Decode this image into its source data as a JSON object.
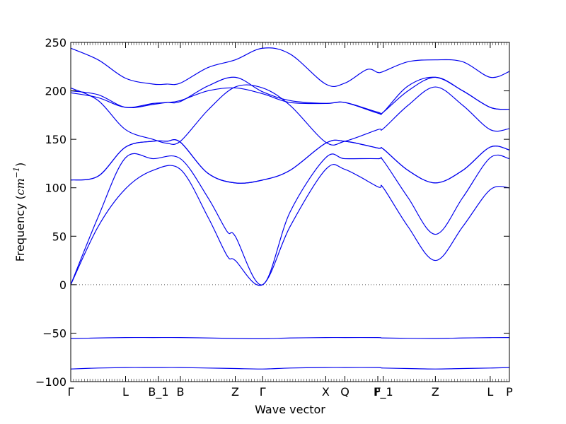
{
  "chart_data": {
    "type": "line",
    "title": "",
    "xlabel": "Wave vector",
    "ylabel_prefix": "Frequency (",
    "ylabel_unit_base": "cm",
    "ylabel_unit_exp": "−1",
    "ylabel_suffix": ")",
    "ylim": [
      -100,
      250
    ],
    "yticks": [
      -100,
      -50,
      0,
      50,
      100,
      150,
      200,
      250
    ],
    "ytick_labels": [
      "−100",
      "−50",
      "0",
      "50",
      "100",
      "150",
      "200",
      "250"
    ],
    "xlim": [
      0,
      16
    ],
    "xticks": [
      {
        "x": 0,
        "label": "Γ"
      },
      {
        "x": 2.0,
        "label": "L"
      },
      {
        "x": 3.2,
        "label": "B_1"
      },
      {
        "x": 4.0,
        "label": "B"
      },
      {
        "x": 6.0,
        "label": "Z"
      },
      {
        "x": 7.0,
        "label": "Γ"
      },
      {
        "x": 9.3,
        "label": "X"
      },
      {
        "x": 10.0,
        "label": "Q"
      },
      {
        "x": 11.2,
        "label": "F"
      },
      {
        "x": 11.4,
        "label": "P_1"
      },
      {
        "x": 13.3,
        "label": "Z"
      },
      {
        "x": 15.3,
        "label": "L"
      },
      {
        "x": 16.0,
        "label": "P"
      }
    ],
    "zero_line": true,
    "line_color": "#0000ee",
    "series": [
      {
        "x": [
          0,
          1,
          2,
          3,
          4,
          5,
          6,
          7,
          8,
          9.3,
          10,
          11.2,
          11.4,
          12.3,
          13.3,
          14.3,
          15.3,
          16
        ],
        "y": [
          -87,
          -86,
          -85.5,
          -85.5,
          -85.5,
          -86,
          -86.5,
          -87,
          -86,
          -85.5,
          -85.5,
          -85.5,
          -86,
          -86.5,
          -87,
          -86.5,
          -86,
          -85.5
        ]
      },
      {
        "x": [
          0,
          1,
          2,
          3,
          4,
          5,
          6,
          7,
          8,
          9.3,
          10,
          11.2,
          11.4,
          12.3,
          13.3,
          14.3,
          15.3,
          16
        ],
        "y": [
          -55.5,
          -55,
          -54.5,
          -54.5,
          -54.5,
          -55,
          -55.5,
          -55.8,
          -55,
          -54.5,
          -54.5,
          -54.5,
          -55,
          -55.3,
          -55.5,
          -55,
          -54.6,
          -54.5
        ]
      },
      {
        "x": [
          0,
          1,
          2,
          3,
          4,
          5,
          5.7,
          6,
          7,
          8,
          9.3,
          10,
          11.2,
          11.4,
          12.3,
          13.3,
          14.3,
          15.3,
          16
        ],
        "y": [
          0,
          60,
          99,
          118,
          119,
          70,
          30,
          25,
          0,
          60,
          119,
          119,
          101,
          100,
          60,
          25,
          60,
          98,
          100
        ]
      },
      {
        "x": [
          0,
          1,
          2,
          3,
          4,
          5,
          5.7,
          6,
          7,
          8,
          9.3,
          10,
          11.2,
          11.4,
          12.3,
          13.3,
          14.3,
          15.3,
          16
        ],
        "y": [
          0,
          70,
          131,
          130,
          130,
          90,
          55,
          50,
          0,
          75,
          131,
          130,
          130,
          128,
          90,
          52,
          90,
          131,
          130
        ]
      },
      {
        "x": [
          0,
          1,
          2,
          3,
          3.5,
          4,
          5,
          6,
          7,
          8,
          9.3,
          10,
          11.2,
          11.4,
          12.3,
          13.3,
          14.3,
          15.3,
          16
        ],
        "y": [
          108,
          112,
          142,
          148,
          148,
          147,
          115,
          105,
          108,
          118,
          146,
          148,
          141,
          140,
          118,
          105,
          118,
          142,
          139
        ]
      },
      {
        "x": [
          0,
          1,
          2,
          3,
          3.5,
          4,
          5,
          6,
          7,
          8,
          9.3,
          10,
          11.2,
          11.4,
          12.3,
          13.3,
          14.3,
          15.3,
          16
        ],
        "y": [
          108,
          112,
          142,
          148,
          148,
          147,
          115,
          105,
          108,
          118,
          146,
          148,
          141,
          140,
          118,
          105,
          118,
          142,
          139
        ]
      },
      {
        "x": [
          0,
          1,
          2,
          3,
          3.5,
          4,
          5,
          6,
          7,
          8,
          9.3,
          10,
          11.2,
          11.4,
          12.3,
          13.3,
          14.3,
          15.3,
          16
        ],
        "y": [
          203,
          190,
          160,
          150,
          146,
          148,
          180,
          204,
          203,
          185,
          147,
          148,
          160,
          161,
          185,
          204,
          185,
          160,
          161
        ]
      },
      {
        "x": [
          0,
          1,
          2,
          3,
          3.5,
          4,
          5,
          6,
          7,
          8,
          9.3,
          10,
          11.2,
          11.4,
          12.3,
          13.3,
          14.3,
          15.3,
          16
        ],
        "y": [
          198,
          193,
          183,
          187,
          188,
          190,
          200,
          203,
          197,
          188,
          187,
          188,
          177,
          178,
          200,
          214,
          200,
          183,
          181
        ]
      },
      {
        "x": [
          0,
          1,
          2,
          3,
          3.5,
          4,
          5,
          6,
          7,
          8,
          9.3,
          10,
          11.2,
          11.4,
          12.3,
          13.3,
          14.3,
          15.3,
          16
        ],
        "y": [
          200,
          196,
          183,
          186,
          188,
          189,
          205,
          214,
          199,
          190,
          187,
          188,
          178,
          178,
          205,
          214,
          200,
          183,
          181
        ]
      },
      {
        "x": [
          0,
          1,
          2,
          3,
          3.5,
          4,
          5,
          6,
          7,
          8,
          9.3,
          10,
          10.8,
          11.2,
          11.4,
          12.3,
          13.3,
          14.3,
          15.3,
          16
        ],
        "y": [
          244,
          232,
          213,
          207,
          207,
          208,
          224,
          232,
          244,
          238,
          207,
          208,
          222,
          219,
          220,
          230,
          232,
          230,
          214,
          220
        ]
      }
    ]
  }
}
